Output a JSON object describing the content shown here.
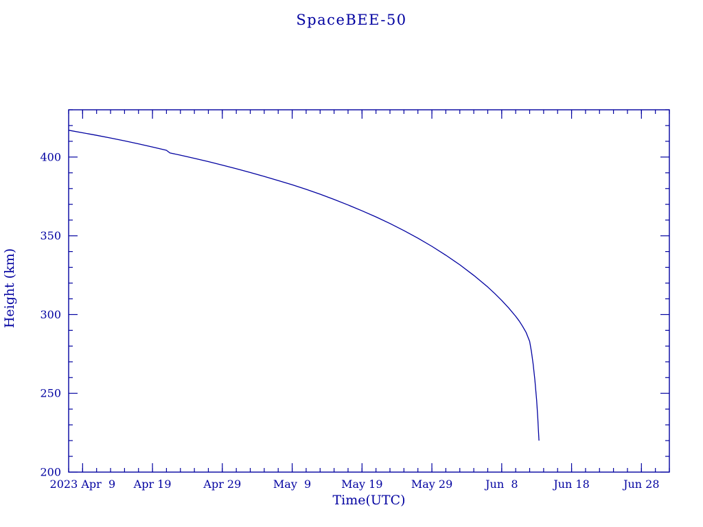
{
  "page": {
    "background_color": "#ffffff"
  },
  "chart_data": {
    "type": "line",
    "title": "SpaceBEE-50",
    "xlabel": "Time(UTC)",
    "ylabel": "Height (km)",
    "color": "#0000a0",
    "background": "#ffffff",
    "grid": false,
    "legend": "none",
    "ylim": [
      200,
      430
    ],
    "y_major_ticks": [
      200,
      250,
      300,
      350,
      400
    ],
    "y_minor_step": 10,
    "x_axis_start": "2023-04-07T00:00:00Z",
    "x_axis_end": "2023-07-02T00:00:00Z",
    "x_minor_step_days": 2,
    "x_major_ticks": [
      {
        "date": "2023-04-09",
        "label": "2023 Apr  9"
      },
      {
        "date": "2023-04-19",
        "label": "Apr 19"
      },
      {
        "date": "2023-04-29",
        "label": "Apr 29"
      },
      {
        "date": "2023-05-09",
        "label": "May  9"
      },
      {
        "date": "2023-05-19",
        "label": "May 19"
      },
      {
        "date": "2023-05-29",
        "label": "May 29"
      },
      {
        "date": "2023-06-08",
        "label": "Jun  8"
      },
      {
        "date": "2023-06-18",
        "label": "Jun 18"
      },
      {
        "date": "2023-06-28",
        "label": "Jun 28"
      }
    ],
    "series": [
      {
        "name": "SpaceBEE-50 orbital height",
        "points": [
          [
            "2023-04-07",
            417.0
          ],
          [
            "2023-04-09",
            415.4
          ],
          [
            "2023-04-11",
            413.8
          ],
          [
            "2023-04-13",
            412.1
          ],
          [
            "2023-04-15",
            410.3
          ],
          [
            "2023-04-17",
            408.4
          ],
          [
            "2023-04-19",
            406.4
          ],
          [
            "2023-04-21",
            404.3
          ],
          [
            "2023-04-21T12:00:00Z",
            402.6
          ],
          [
            "2023-04-23",
            401.2
          ],
          [
            "2023-04-25",
            399.2
          ],
          [
            "2023-04-27",
            397.1
          ],
          [
            "2023-04-29",
            394.9
          ],
          [
            "2023-05-01",
            392.6
          ],
          [
            "2023-05-03",
            390.2
          ],
          [
            "2023-05-05",
            387.7
          ],
          [
            "2023-05-07",
            385.1
          ],
          [
            "2023-05-09",
            382.4
          ],
          [
            "2023-05-11",
            379.5
          ],
          [
            "2023-05-13",
            376.4
          ],
          [
            "2023-05-15",
            373.1
          ],
          [
            "2023-05-17",
            369.6
          ],
          [
            "2023-05-19",
            365.9
          ],
          [
            "2023-05-21",
            362.0
          ],
          [
            "2023-05-23",
            357.8
          ],
          [
            "2023-05-25",
            353.3
          ],
          [
            "2023-05-27",
            348.5
          ],
          [
            "2023-05-29",
            343.3
          ],
          [
            "2023-05-31",
            337.7
          ],
          [
            "2023-06-02",
            331.6
          ],
          [
            "2023-06-04",
            324.9
          ],
          [
            "2023-06-06",
            317.5
          ],
          [
            "2023-06-07",
            313.4
          ],
          [
            "2023-06-08",
            309.0
          ],
          [
            "2023-06-09",
            304.2
          ],
          [
            "2023-06-10",
            298.9
          ],
          [
            "2023-06-10T12:00:00Z",
            295.9
          ],
          [
            "2023-06-11",
            292.5
          ],
          [
            "2023-06-11T12:00:00Z",
            288.6
          ],
          [
            "2023-06-12",
            283.0
          ],
          [
            "2023-06-12T06:00:00Z",
            276.5
          ],
          [
            "2023-06-12T12:00:00Z",
            268.5
          ],
          [
            "2023-06-12T18:00:00Z",
            258.5
          ],
          [
            "2023-06-13",
            245.5
          ],
          [
            "2023-06-13T04:00:00Z",
            234.0
          ],
          [
            "2023-06-13T06:00:00Z",
            227.0
          ],
          [
            "2023-06-13T08:00:00Z",
            220.0
          ]
        ]
      }
    ]
  }
}
